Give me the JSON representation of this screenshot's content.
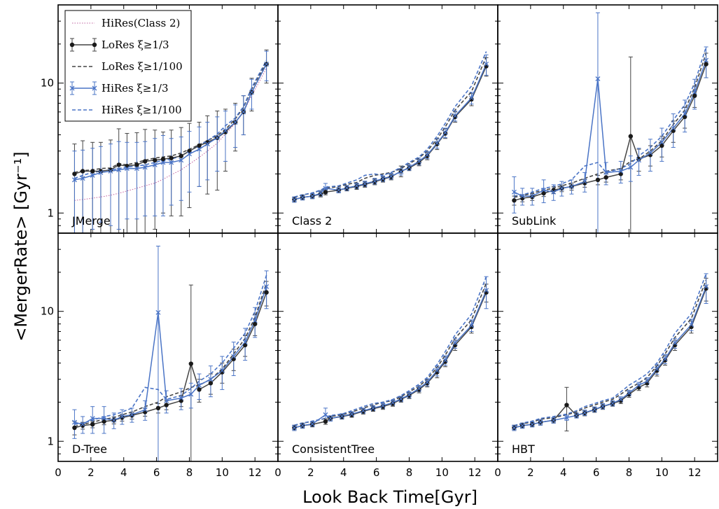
{
  "figure": {
    "ylabel": "<MergerRate> [Gyr⁻¹]",
    "xlabel": "Look Back Time[Gyr]"
  },
  "legend": {
    "items": [
      {
        "label": "HiRes(Class 2)",
        "series": "hires_class2",
        "style": "dotted"
      },
      {
        "label": "LoRes ξ≥1/3",
        "series": "lores_third",
        "style": "line-dot-err"
      },
      {
        "label": "LoRes ξ≥1/100",
        "series": "lores_hundredth",
        "style": "dashed"
      },
      {
        "label": "HiRes ξ≥1/3",
        "series": "hires_third",
        "style": "line-x-err"
      },
      {
        "label": "HiRes ξ≥1/100",
        "series": "hires_hundredth",
        "style": "dashed"
      }
    ]
  },
  "colors": {
    "lores": "#444444",
    "lores_marker": "#1a1a1a",
    "hires": "#4a74c6",
    "hires_class2": "#c060a0",
    "frame": "#000000"
  },
  "chart_data": {
    "type": "line",
    "layout": "2x3 panels, shared axes",
    "xlim": [
      0,
      13.4
    ],
    "ylim": [
      0.7,
      40
    ],
    "yscale": "log",
    "x_ticks": [
      0,
      2,
      4,
      6,
      8,
      10,
      12
    ],
    "y_ticks": [
      {
        "value": 1,
        "label": "1"
      },
      {
        "value": 10,
        "label": "10"
      }
    ],
    "x": [
      1.0,
      1.5,
      2.1,
      2.6,
      3.2,
      3.7,
      4.2,
      4.8,
      5.3,
      5.9,
      6.4,
      6.9,
      7.5,
      8.0,
      8.6,
      9.1,
      9.7,
      10.2,
      10.8,
      11.3,
      11.8,
      12.7
    ],
    "panels": [
      {
        "label": "JMerge",
        "series": {
          "hires_class2": [
            1.25,
            1.27,
            1.3,
            1.33,
            1.37,
            1.42,
            1.48,
            1.55,
            1.62,
            1.7,
            1.82,
            1.97,
            2.15,
            2.38,
            2.68,
            3.0,
            3.45,
            4.05,
            4.9,
            6.0,
            8.0,
            13.0
          ],
          "lores_third": [
            2.0,
            2.1,
            2.1,
            2.1,
            2.15,
            2.35,
            2.3,
            2.35,
            2.5,
            2.55,
            2.6,
            2.65,
            2.75,
            3.0,
            3.3,
            3.5,
            3.8,
            4.2,
            5.0,
            6.0,
            8.5,
            14.0
          ],
          "lores_third_err": [
            1.4,
            1.5,
            1.4,
            1.4,
            1.5,
            2.1,
            1.8,
            1.8,
            1.9,
            1.8,
            1.6,
            1.7,
            1.8,
            1.9,
            1.7,
            2.1,
            2.3,
            2.1,
            2.0,
            2.0,
            2.4,
            4.0
          ],
          "lores_hundredth": [
            2.05,
            2.12,
            2.15,
            2.2,
            2.22,
            2.4,
            2.35,
            2.45,
            2.55,
            2.65,
            2.7,
            2.75,
            2.9,
            3.1,
            3.35,
            3.6,
            3.95,
            4.4,
            5.3,
            6.5,
            9.0,
            14.5
          ],
          "hires_third": [
            1.8,
            1.85,
            1.95,
            2.05,
            2.1,
            2.15,
            2.2,
            2.2,
            2.25,
            2.35,
            2.45,
            2.45,
            2.55,
            2.85,
            3.1,
            3.4,
            3.8,
            4.3,
            5.0,
            6.0,
            8.5,
            14.0
          ],
          "hires_third_err": [
            1.2,
            1.2,
            1.2,
            1.2,
            1.3,
            1.4,
            1.3,
            1.3,
            1.3,
            1.4,
            1.5,
            1.3,
            1.3,
            1.4,
            1.5,
            1.6,
            1.7,
            1.8,
            1.8,
            2.0,
            2.2,
            3.6
          ],
          "hires_hundredth": [
            1.85,
            1.95,
            2.05,
            2.1,
            2.15,
            2.2,
            2.25,
            2.3,
            2.35,
            2.45,
            2.55,
            2.6,
            2.75,
            3.0,
            3.3,
            3.6,
            4.05,
            4.7,
            5.4,
            6.6,
            9.2,
            15.0
          ]
        }
      },
      {
        "label": "Class 2",
        "series": {
          "lores_third": [
            1.27,
            1.32,
            1.35,
            1.4,
            1.45,
            1.5,
            1.55,
            1.6,
            1.66,
            1.74,
            1.82,
            1.9,
            2.1,
            2.22,
            2.45,
            2.75,
            3.4,
            4.1,
            5.5,
            7.5,
            13.5
          ],
          "lores_third_err": [
            0.06,
            0.06,
            0.06,
            0.07,
            0.07,
            0.07,
            0.07,
            0.08,
            0.08,
            0.09,
            0.09,
            0.1,
            0.2,
            0.1,
            0.14,
            0.18,
            0.32,
            0.35,
            0.5,
            0.8,
            2.2
          ],
          "lores_hundredth": [
            1.32,
            1.38,
            1.42,
            1.5,
            1.55,
            1.6,
            1.66,
            1.72,
            1.85,
            1.95,
            2.0,
            2.05,
            2.2,
            2.4,
            2.65,
            3.0,
            3.7,
            4.6,
            6.2,
            8.6,
            16.0
          ],
          "hires_third": [
            1.27,
            1.32,
            1.35,
            1.42,
            1.55,
            1.5,
            1.56,
            1.62,
            1.68,
            1.76,
            1.84,
            1.92,
            2.08,
            2.25,
            2.5,
            2.8,
            3.45,
            4.15,
            5.6,
            7.7,
            14.0
          ],
          "hires_third_err": [
            0.06,
            0.06,
            0.06,
            0.07,
            0.14,
            0.07,
            0.07,
            0.08,
            0.08,
            0.09,
            0.09,
            0.1,
            0.12,
            0.12,
            0.15,
            0.18,
            0.3,
            0.35,
            0.5,
            0.8,
            2.5
          ],
          "hires_hundredth": [
            1.33,
            1.38,
            1.43,
            1.5,
            1.58,
            1.62,
            1.7,
            1.8,
            1.95,
            2.0,
            1.95,
            2.05,
            2.25,
            2.45,
            2.7,
            3.1,
            3.9,
            4.9,
            6.6,
            9.5,
            17.5
          ]
        },
        "x": [
          1.0,
          1.5,
          2.1,
          2.6,
          2.9,
          3.7,
          4.2,
          4.8,
          5.3,
          5.9,
          6.4,
          6.9,
          7.5,
          8.0,
          8.6,
          9.1,
          9.7,
          10.2,
          10.8,
          11.8,
          12.7
        ]
      },
      {
        "label": "SubLink",
        "series": {
          "lores_third": [
            1.25,
            1.3,
            1.33,
            1.42,
            1.5,
            1.55,
            1.6,
            1.7,
            1.8,
            1.88,
            2.0,
            3.9,
            2.6,
            2.8,
            3.3,
            4.3,
            5.5,
            8.0,
            14.0
          ],
          "lores_third_err": [
            0.1,
            0.08,
            0.08,
            0.08,
            0.09,
            0.09,
            0.1,
            0.12,
            0.15,
            0.15,
            0.2,
            12.0,
            0.5,
            0.5,
            0.6,
            0.8,
            1.0,
            1.5,
            3.0
          ],
          "lores_hundredth": [
            1.32,
            1.36,
            1.42,
            1.5,
            1.55,
            1.62,
            1.7,
            1.85,
            2.0,
            2.1,
            2.2,
            2.5,
            2.6,
            3.0,
            3.6,
            4.8,
            6.2,
            9.2,
            17.0
          ],
          "hires_third": [
            1.45,
            1.35,
            1.35,
            1.5,
            1.45,
            1.55,
            1.6,
            1.75,
            10.8,
            2.05,
            2.1,
            2.25,
            2.55,
            2.9,
            3.5,
            4.5,
            5.8,
            8.5,
            15.0
          ],
          "hires_third_err": [
            0.45,
            0.2,
            0.2,
            0.3,
            0.2,
            0.2,
            0.2,
            0.3,
            24.0,
            0.4,
            0.4,
            0.5,
            0.6,
            0.8,
            1.0,
            1.3,
            1.6,
            2.2,
            4.0
          ],
          "hires_hundredth": [
            1.35,
            1.38,
            1.45,
            1.55,
            1.6,
            1.68,
            1.8,
            2.3,
            2.45,
            2.05,
            2.2,
            2.4,
            2.75,
            3.2,
            3.9,
            5.2,
            6.8,
            10.0,
            19.0
          ]
        },
        "x": [
          1.0,
          1.5,
          2.1,
          2.8,
          3.4,
          3.9,
          4.5,
          5.3,
          6.1,
          6.6,
          7.5,
          8.1,
          8.6,
          9.3,
          10.0,
          10.7,
          11.4,
          12.0,
          12.7
        ]
      },
      {
        "label": "D-Tree",
        "series": {
          "lores_third": [
            1.27,
            1.32,
            1.35,
            1.42,
            1.45,
            1.52,
            1.58,
            1.68,
            1.8,
            1.9,
            2.05,
            3.95,
            2.5,
            2.8,
            3.4,
            4.3,
            5.5,
            8.0,
            14.0
          ],
          "lores_third_err": [
            0.15,
            0.08,
            0.08,
            0.08,
            0.09,
            0.09,
            0.1,
            0.12,
            0.15,
            0.15,
            0.2,
            12.0,
            0.5,
            0.5,
            0.6,
            0.8,
            1.0,
            1.5,
            3.0
          ],
          "lores_hundredth": [
            1.3,
            1.35,
            1.4,
            1.48,
            1.52,
            1.6,
            1.68,
            1.85,
            2.0,
            2.2,
            2.4,
            2.6,
            2.7,
            3.0,
            3.6,
            4.7,
            6.2,
            9.0,
            16.5
          ],
          "hires_third": [
            1.4,
            1.35,
            1.5,
            1.5,
            1.45,
            1.55,
            1.6,
            1.75,
            9.8,
            2.05,
            2.15,
            2.3,
            2.7,
            3.0,
            3.5,
            4.5,
            5.8,
            8.5,
            15.5
          ],
          "hires_third_err": [
            0.35,
            0.2,
            0.35,
            0.35,
            0.2,
            0.2,
            0.2,
            0.3,
            22.0,
            0.4,
            0.4,
            0.5,
            0.6,
            0.8,
            1.0,
            1.3,
            1.6,
            2.2,
            5.0
          ],
          "hires_hundredth": [
            1.35,
            1.38,
            1.45,
            1.55,
            1.6,
            1.68,
            1.8,
            2.6,
            2.5,
            2.1,
            2.25,
            2.55,
            2.9,
            3.3,
            4.0,
            5.2,
            6.8,
            10.0,
            19.0
          ]
        },
        "x": [
          1.0,
          1.5,
          2.1,
          2.8,
          3.4,
          3.9,
          4.5,
          5.3,
          6.1,
          6.6,
          7.5,
          8.1,
          8.6,
          9.3,
          10.0,
          10.7,
          11.4,
          12.0,
          12.7
        ]
      },
      {
        "label": "ConsistentTree",
        "series": {
          "lores_third": [
            1.27,
            1.32,
            1.35,
            1.42,
            1.5,
            1.55,
            1.6,
            1.7,
            1.78,
            1.85,
            1.95,
            2.1,
            2.25,
            2.5,
            2.8,
            3.4,
            4.1,
            5.5,
            7.6,
            14.0
          ],
          "lores_third_err": [
            0.06,
            0.06,
            0.06,
            0.07,
            0.07,
            0.07,
            0.07,
            0.08,
            0.08,
            0.09,
            0.09,
            0.1,
            0.12,
            0.14,
            0.18,
            0.32,
            0.35,
            0.5,
            0.8,
            2.2
          ],
          "lores_hundredth": [
            1.32,
            1.38,
            1.42,
            1.5,
            1.55,
            1.6,
            1.68,
            1.8,
            1.9,
            2.0,
            2.05,
            2.2,
            2.4,
            2.65,
            3.0,
            3.7,
            4.6,
            6.2,
            8.6,
            16.5
          ],
          "hires_third": [
            1.27,
            1.32,
            1.36,
            1.6,
            1.5,
            1.56,
            1.62,
            1.72,
            1.8,
            1.88,
            1.98,
            2.12,
            2.28,
            2.55,
            2.85,
            3.5,
            4.2,
            5.7,
            7.8,
            14.5
          ],
          "hires_third_err": [
            0.06,
            0.06,
            0.06,
            0.2,
            0.07,
            0.07,
            0.07,
            0.08,
            0.08,
            0.09,
            0.09,
            0.1,
            0.12,
            0.14,
            0.18,
            0.32,
            0.35,
            0.5,
            0.8,
            4.0
          ],
          "hires_hundredth": [
            1.33,
            1.38,
            1.43,
            1.5,
            1.58,
            1.62,
            1.72,
            1.85,
            1.95,
            2.0,
            2.1,
            2.25,
            2.45,
            2.75,
            3.1,
            3.9,
            4.9,
            6.6,
            9.5,
            18.5
          ]
        },
        "x": [
          1.0,
          1.5,
          2.1,
          2.9,
          3.2,
          3.9,
          4.5,
          5.2,
          5.8,
          6.4,
          7.0,
          7.5,
          8.0,
          8.6,
          9.1,
          9.7,
          10.2,
          10.8,
          11.8,
          12.7
        ]
      },
      {
        "label": "HBT",
        "series": {
          "lores_third": [
            1.27,
            1.32,
            1.35,
            1.4,
            1.45,
            1.9,
            1.58,
            1.65,
            1.75,
            1.85,
            1.95,
            2.05,
            2.3,
            2.6,
            2.8,
            3.5,
            4.2,
            5.5,
            7.6,
            15.0
          ],
          "lores_third_err": [
            0.06,
            0.06,
            0.06,
            0.07,
            0.07,
            0.7,
            0.07,
            0.08,
            0.08,
            0.09,
            0.09,
            0.1,
            0.12,
            0.14,
            0.18,
            0.32,
            0.35,
            0.5,
            0.8,
            3.0
          ],
          "lores_hundredth": [
            1.3,
            1.37,
            1.4,
            1.48,
            1.52,
            1.6,
            1.68,
            1.8,
            1.9,
            2.0,
            2.1,
            2.3,
            2.55,
            2.8,
            3.1,
            3.8,
            4.7,
            6.3,
            8.8,
            17.5
          ],
          "hires_third": [
            1.27,
            1.32,
            1.35,
            1.4,
            1.45,
            1.52,
            1.58,
            1.66,
            1.76,
            1.86,
            1.96,
            2.1,
            2.35,
            2.7,
            2.9,
            3.6,
            4.3,
            5.7,
            7.9,
            15.5
          ],
          "hires_third_err": [
            0.06,
            0.06,
            0.06,
            0.07,
            0.07,
            0.07,
            0.07,
            0.08,
            0.08,
            0.09,
            0.09,
            0.1,
            0.12,
            0.14,
            0.18,
            0.32,
            0.35,
            0.5,
            0.8,
            4.0
          ],
          "hires_hundredth": [
            1.32,
            1.38,
            1.43,
            1.5,
            1.55,
            1.62,
            1.72,
            1.85,
            1.95,
            2.05,
            2.15,
            2.4,
            2.7,
            3.0,
            3.3,
            4.0,
            5.0,
            6.8,
            9.6,
            19.5
          ]
        },
        "x": [
          1.0,
          1.5,
          2.1,
          2.6,
          3.4,
          4.2,
          4.8,
          5.3,
          5.9,
          6.4,
          7.0,
          7.5,
          8.0,
          8.6,
          9.1,
          9.7,
          10.2,
          10.8,
          11.8,
          12.7
        ]
      }
    ]
  }
}
